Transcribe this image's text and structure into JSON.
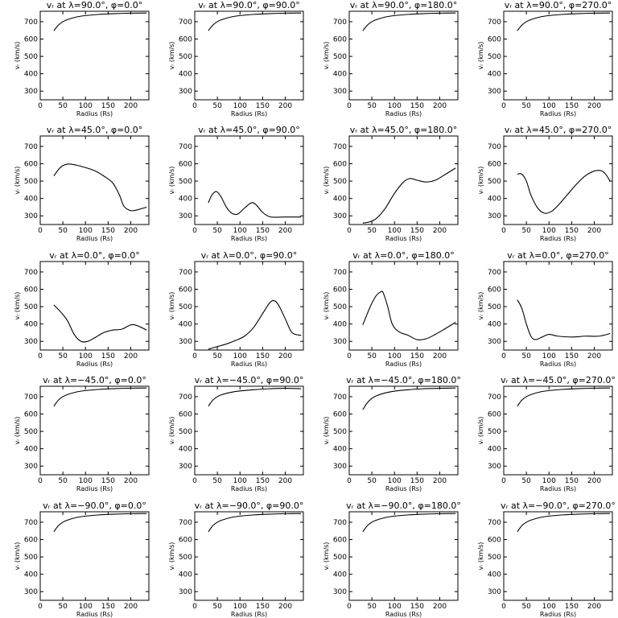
{
  "chart_data": [
    {
      "type": "line",
      "title": "vᵣ at λ=90.0°, φ=0.0°",
      "xlabel": "Radius (Rs)",
      "ylabel": "vᵣ (km/s)",
      "xlim": [
        0,
        240
      ],
      "ylim": [
        250,
        760
      ],
      "xticks": [
        0,
        50,
        100,
        150,
        200
      ],
      "yticks": [
        300,
        400,
        500,
        600,
        700
      ],
      "series": [
        {
          "x": [
            30,
            40,
            50,
            60,
            80,
            100,
            130,
            160,
            200,
            235
          ],
          "y": [
            648,
            680,
            700,
            712,
            727,
            735,
            742,
            746,
            749,
            750
          ]
        }
      ]
    },
    {
      "type": "line",
      "title": "vᵣ at λ=90.0°, φ=90.0°",
      "xlabel": "Radius (Rs)",
      "ylabel": "vᵣ (km/s)",
      "xlim": [
        0,
        240
      ],
      "ylim": [
        250,
        760
      ],
      "xticks": [
        0,
        50,
        100,
        150,
        200
      ],
      "yticks": [
        300,
        400,
        500,
        600,
        700
      ],
      "series": [
        {
          "x": [
            30,
            40,
            50,
            60,
            80,
            100,
            130,
            160,
            200,
            235
          ],
          "y": [
            648,
            680,
            700,
            712,
            727,
            735,
            742,
            746,
            749,
            750
          ]
        }
      ]
    },
    {
      "type": "line",
      "title": "vᵣ at λ=90.0°, φ=180.0°",
      "xlabel": "Radius (Rs)",
      "ylabel": "vᵣ (km/s)",
      "xlim": [
        0,
        240
      ],
      "ylim": [
        250,
        760
      ],
      "xticks": [
        0,
        50,
        100,
        150,
        200
      ],
      "yticks": [
        300,
        400,
        500,
        600,
        700
      ],
      "series": [
        {
          "x": [
            30,
            40,
            50,
            60,
            80,
            100,
            130,
            160,
            200,
            235
          ],
          "y": [
            648,
            680,
            700,
            712,
            727,
            735,
            742,
            746,
            749,
            750
          ]
        }
      ]
    },
    {
      "type": "line",
      "title": "vᵣ at λ=90.0°, φ=270.0°",
      "xlabel": "Radius (Rs)",
      "ylabel": "vᵣ (km/s)",
      "xlim": [
        0,
        240
      ],
      "ylim": [
        250,
        760
      ],
      "xticks": [
        0,
        50,
        100,
        150,
        200
      ],
      "yticks": [
        300,
        400,
        500,
        600,
        700
      ],
      "series": [
        {
          "x": [
            30,
            40,
            50,
            60,
            80,
            100,
            130,
            160,
            200,
            235
          ],
          "y": [
            648,
            680,
            700,
            712,
            727,
            735,
            742,
            746,
            749,
            750
          ]
        }
      ]
    },
    {
      "type": "line",
      "title": "vᵣ at λ=45.0°, φ=0.0°",
      "xlabel": "Radius (Rs)",
      "ylabel": "vᵣ (km/s)",
      "xlim": [
        0,
        240
      ],
      "ylim": [
        250,
        760
      ],
      "xticks": [
        0,
        50,
        100,
        150,
        200
      ],
      "yticks": [
        300,
        400,
        500,
        600,
        700
      ],
      "series": [
        {
          "x": [
            30,
            45,
            60,
            80,
            100,
            120,
            140,
            160,
            175,
            185,
            200,
            215,
            235
          ],
          "y": [
            530,
            580,
            598,
            592,
            578,
            560,
            530,
            490,
            420,
            355,
            330,
            335,
            350
          ]
        }
      ]
    },
    {
      "type": "line",
      "title": "vᵣ at λ=45.0°, φ=90.0°",
      "xlabel": "Radius (Rs)",
      "ylabel": "vᵣ (km/s)",
      "xlim": [
        0,
        240
      ],
      "ylim": [
        250,
        760
      ],
      "xticks": [
        0,
        50,
        100,
        150,
        200
      ],
      "yticks": [
        300,
        400,
        500,
        600,
        700
      ],
      "series": [
        {
          "x": [
            30,
            38,
            48,
            58,
            70,
            82,
            95,
            110,
            125,
            135,
            150,
            165,
            180,
            200,
            235
          ],
          "y": [
            375,
            420,
            440,
            410,
            350,
            315,
            310,
            345,
            375,
            365,
            320,
            295,
            292,
            293,
            293
          ]
        }
      ]
    },
    {
      "type": "line",
      "title": "vᵣ at λ=45.0°, φ=180.0°",
      "xlabel": "Radius (Rs)",
      "ylabel": "vᵣ (km/s)",
      "xlim": [
        0,
        240
      ],
      "ylim": [
        250,
        760
      ],
      "xticks": [
        0,
        50,
        100,
        150,
        200
      ],
      "yticks": [
        300,
        400,
        500,
        600,
        700
      ],
      "series": [
        {
          "x": [
            30,
            45,
            60,
            80,
            100,
            120,
            135,
            150,
            170,
            190,
            210,
            235
          ],
          "y": [
            258,
            265,
            285,
            345,
            430,
            495,
            515,
            505,
            495,
            505,
            535,
            575
          ]
        }
      ]
    },
    {
      "type": "line",
      "title": "vᵣ at λ=45.0°, φ=270.0°",
      "xlabel": "Radius (Rs)",
      "ylabel": "vᵣ (km/s)",
      "xlim": [
        0,
        240
      ],
      "ylim": [
        250,
        760
      ],
      "xticks": [
        0,
        50,
        100,
        150,
        200
      ],
      "yticks": [
        300,
        400,
        500,
        600,
        700
      ],
      "series": [
        {
          "x": [
            30,
            40,
            50,
            60,
            75,
            90,
            105,
            120,
            140,
            160,
            180,
            200,
            215,
            225,
            235
          ],
          "y": [
            540,
            540,
            500,
            420,
            345,
            315,
            325,
            360,
            420,
            480,
            530,
            558,
            560,
            540,
            500
          ]
        }
      ]
    },
    {
      "type": "line",
      "title": "vᵣ at λ=0.0°, φ=0.0°",
      "xlabel": "Radius (Rs)",
      "ylabel": "vᵣ (km/s)",
      "xlim": [
        0,
        240
      ],
      "ylim": [
        250,
        760
      ],
      "xticks": [
        0,
        50,
        100,
        150,
        200
      ],
      "yticks": [
        300,
        400,
        500,
        600,
        700
      ],
      "series": [
        {
          "x": [
            30,
            45,
            60,
            75,
            90,
            105,
            120,
            140,
            160,
            180,
            200,
            215,
            235
          ],
          "y": [
            510,
            470,
            420,
            340,
            300,
            300,
            320,
            350,
            365,
            370,
            395,
            390,
            365
          ]
        }
      ]
    },
    {
      "type": "line",
      "title": "vᵣ at λ=0.0°, φ=90.0°",
      "xlabel": "Radius (Rs)",
      "ylabel": "vᵣ (km/s)",
      "xlim": [
        0,
        240
      ],
      "ylim": [
        250,
        760
      ],
      "xticks": [
        0,
        50,
        100,
        150,
        200
      ],
      "yticks": [
        300,
        400,
        500,
        600,
        700
      ],
      "series": [
        {
          "x": [
            30,
            50,
            70,
            90,
            110,
            130,
            150,
            165,
            175,
            185,
            200,
            215,
            235
          ],
          "y": [
            255,
            270,
            285,
            305,
            330,
            380,
            460,
            520,
            535,
            510,
            430,
            350,
            335
          ]
        }
      ]
    },
    {
      "type": "line",
      "title": "vᵣ at λ=0.0°, φ=180.0°",
      "xlabel": "Radius (Rs)",
      "ylabel": "vᵣ (km/s)",
      "xlim": [
        0,
        240
      ],
      "ylim": [
        250,
        760
      ],
      "xticks": [
        0,
        50,
        100,
        150,
        200
      ],
      "yticks": [
        300,
        400,
        500,
        600,
        700
      ],
      "series": [
        {
          "x": [
            30,
            40,
            50,
            60,
            70,
            75,
            85,
            95,
            110,
            130,
            150,
            170,
            190,
            210,
            235
          ],
          "y": [
            395,
            460,
            520,
            565,
            585,
            580,
            500,
            400,
            355,
            335,
            310,
            315,
            340,
            370,
            410
          ]
        }
      ]
    },
    {
      "type": "line",
      "title": "vᵣ at λ=0.0°, φ=270.0°",
      "xlabel": "Radius (Rs)",
      "ylabel": "vᵣ (km/s)",
      "xlim": [
        0,
        240
      ],
      "ylim": [
        250,
        760
      ],
      "xticks": [
        0,
        50,
        100,
        150,
        200
      ],
      "yticks": [
        300,
        400,
        500,
        600,
        700
      ],
      "series": [
        {
          "x": [
            30,
            40,
            50,
            60,
            70,
            85,
            100,
            120,
            150,
            180,
            210,
            235
          ],
          "y": [
            540,
            490,
            400,
            330,
            310,
            325,
            340,
            330,
            325,
            330,
            330,
            345
          ]
        }
      ]
    },
    {
      "type": "line",
      "title": "vᵣ at λ=−45.0°, φ=0.0°",
      "xlabel": "Radius (Rs)",
      "ylabel": "vᵣ (km/s)",
      "xlim": [
        0,
        240
      ],
      "ylim": [
        250,
        760
      ],
      "xticks": [
        0,
        50,
        100,
        150,
        200
      ],
      "yticks": [
        300,
        400,
        500,
        600,
        700
      ],
      "series": [
        {
          "x": [
            30,
            40,
            50,
            60,
            80,
            100,
            130,
            160,
            200,
            235
          ],
          "y": [
            645,
            680,
            700,
            712,
            727,
            735,
            742,
            746,
            749,
            750
          ]
        }
      ]
    },
    {
      "type": "line",
      "title": "vᵣ at λ=−45.0°, φ=90.0°",
      "xlabel": "Radius (Rs)",
      "ylabel": "vᵣ (km/s)",
      "xlim": [
        0,
        240
      ],
      "ylim": [
        250,
        760
      ],
      "xticks": [
        0,
        50,
        100,
        150,
        200
      ],
      "yticks": [
        300,
        400,
        500,
        600,
        700
      ],
      "series": [
        {
          "x": [
            30,
            40,
            50,
            60,
            80,
            100,
            130,
            160,
            200,
            235
          ],
          "y": [
            645,
            680,
            700,
            712,
            725,
            733,
            740,
            745,
            748,
            746
          ]
        }
      ]
    },
    {
      "type": "line",
      "title": "vᵣ at λ=−45.0°, φ=180.0°",
      "xlabel": "Radius (Rs)",
      "ylabel": "vᵣ (km/s)",
      "xlim": [
        0,
        240
      ],
      "ylim": [
        250,
        760
      ],
      "xticks": [
        0,
        50,
        100,
        150,
        200
      ],
      "yticks": [
        300,
        400,
        500,
        600,
        700
      ],
      "series": [
        {
          "x": [
            30,
            40,
            50,
            60,
            80,
            100,
            130,
            160,
            200,
            235
          ],
          "y": [
            625,
            665,
            690,
            705,
            722,
            732,
            740,
            745,
            748,
            750
          ]
        }
      ]
    },
    {
      "type": "line",
      "title": "vᵣ at λ=−45.0°, φ=270.0°",
      "xlabel": "Radius (Rs)",
      "ylabel": "vᵣ (km/s)",
      "xlim": [
        0,
        240
      ],
      "ylim": [
        250,
        760
      ],
      "xticks": [
        0,
        50,
        100,
        150,
        200
      ],
      "yticks": [
        300,
        400,
        500,
        600,
        700
      ],
      "series": [
        {
          "x": [
            30,
            40,
            50,
            60,
            80,
            100,
            130,
            160,
            200,
            235
          ],
          "y": [
            645,
            680,
            700,
            712,
            727,
            735,
            742,
            746,
            749,
            750
          ]
        }
      ]
    },
    {
      "type": "line",
      "title": "vᵣ at λ=−90.0°, φ=0.0°",
      "xlabel": "Radius (Rs)",
      "ylabel": "vᵣ (km/s)",
      "xlim": [
        0,
        240
      ],
      "ylim": [
        250,
        760
      ],
      "xticks": [
        0,
        50,
        100,
        150,
        200
      ],
      "yticks": [
        300,
        400,
        500,
        600,
        700
      ],
      "series": [
        {
          "x": [
            30,
            40,
            50,
            60,
            80,
            100,
            130,
            160,
            200,
            235
          ],
          "y": [
            645,
            680,
            700,
            712,
            727,
            735,
            742,
            746,
            749,
            750
          ]
        }
      ]
    },
    {
      "type": "line",
      "title": "vᵣ at λ=−90.0°, φ=90.0°",
      "xlabel": "Radius (Rs)",
      "ylabel": "vᵣ (km/s)",
      "xlim": [
        0,
        240
      ],
      "ylim": [
        250,
        760
      ],
      "xticks": [
        0,
        50,
        100,
        150,
        200
      ],
      "yticks": [
        300,
        400,
        500,
        600,
        700
      ],
      "series": [
        {
          "x": [
            30,
            40,
            50,
            60,
            80,
            100,
            130,
            160,
            200,
            235
          ],
          "y": [
            645,
            680,
            700,
            712,
            727,
            735,
            742,
            746,
            749,
            750
          ]
        }
      ]
    },
    {
      "type": "line",
      "title": "vᵣ at λ=−90.0°, φ=180.0°",
      "xlabel": "Radius (Rs)",
      "ylabel": "vᵣ (km/s)",
      "xlim": [
        0,
        240
      ],
      "ylim": [
        250,
        760
      ],
      "xticks": [
        0,
        50,
        100,
        150,
        200
      ],
      "yticks": [
        300,
        400,
        500,
        600,
        700
      ],
      "series": [
        {
          "x": [
            30,
            40,
            50,
            60,
            80,
            100,
            130,
            160,
            200,
            235
          ],
          "y": [
            645,
            680,
            700,
            712,
            727,
            735,
            742,
            746,
            749,
            750
          ]
        }
      ]
    },
    {
      "type": "line",
      "title": "vᵣ at λ=−90.0°, φ=270.0°",
      "xlabel": "Radius (Rs)",
      "ylabel": "vᵣ (km/s)",
      "xlim": [
        0,
        240
      ],
      "ylim": [
        250,
        760
      ],
      "xticks": [
        0,
        50,
        100,
        150,
        200
      ],
      "yticks": [
        300,
        400,
        500,
        600,
        700
      ],
      "series": [
        {
          "x": [
            30,
            40,
            50,
            60,
            80,
            100,
            130,
            160,
            200,
            235
          ],
          "y": [
            645,
            680,
            700,
            712,
            727,
            735,
            742,
            746,
            749,
            750
          ]
        }
      ]
    }
  ]
}
